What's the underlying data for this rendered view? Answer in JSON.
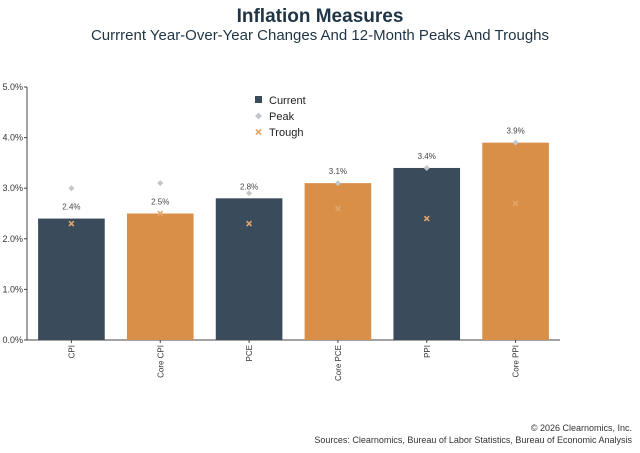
{
  "header": {
    "title": "Inflation Measures",
    "subtitle": "Currrent Year-Over-Year Changes And 12-Month Peaks And Troughs"
  },
  "footer": {
    "copyright": "© 2026 Clearnomics, Inc.",
    "sources": "Sources: Clearnomics, Bureau of Labor Statistics, Bureau of Economic Analysis"
  },
  "chart_data": {
    "type": "bar",
    "title": "Inflation Measures",
    "subtitle": "Currrent Year-Over-Year Changes And 12-Month Peaks And Troughs",
    "categories": [
      "CPI",
      "Core CPI",
      "PCE",
      "Core PCE",
      "PPI",
      "Core PPI"
    ],
    "series": [
      {
        "name": "Current",
        "type": "bar",
        "values": [
          2.4,
          2.5,
          2.8,
          3.1,
          3.4,
          3.9
        ],
        "data_labels": [
          "2.4%",
          "2.5%",
          "2.8%",
          "3.1%",
          "3.4%",
          "3.9%"
        ]
      },
      {
        "name": "Peak",
        "type": "scatter",
        "marker": "diamond",
        "values": [
          3.0,
          3.1,
          2.9,
          3.1,
          3.4,
          3.9
        ]
      },
      {
        "name": "Trough",
        "type": "scatter",
        "marker": "x",
        "values": [
          2.3,
          2.5,
          2.3,
          2.6,
          2.4,
          2.7
        ]
      }
    ],
    "bar_colors": [
      "#3a4b5c",
      "#d98f48",
      "#3a4b5c",
      "#d98f48",
      "#3a4b5c",
      "#d98f48"
    ],
    "peak_color": "#c3c7cb",
    "trough_color": "#e2a66a",
    "ylim": [
      0,
      5
    ],
    "yticks": [
      0,
      1,
      2,
      3,
      4,
      5
    ],
    "ytick_labels": [
      "0.0%",
      "1.0%",
      "2.0%",
      "3.0%",
      "4.0%",
      "5.0%"
    ],
    "grid": false,
    "legend_position": "top-center"
  }
}
